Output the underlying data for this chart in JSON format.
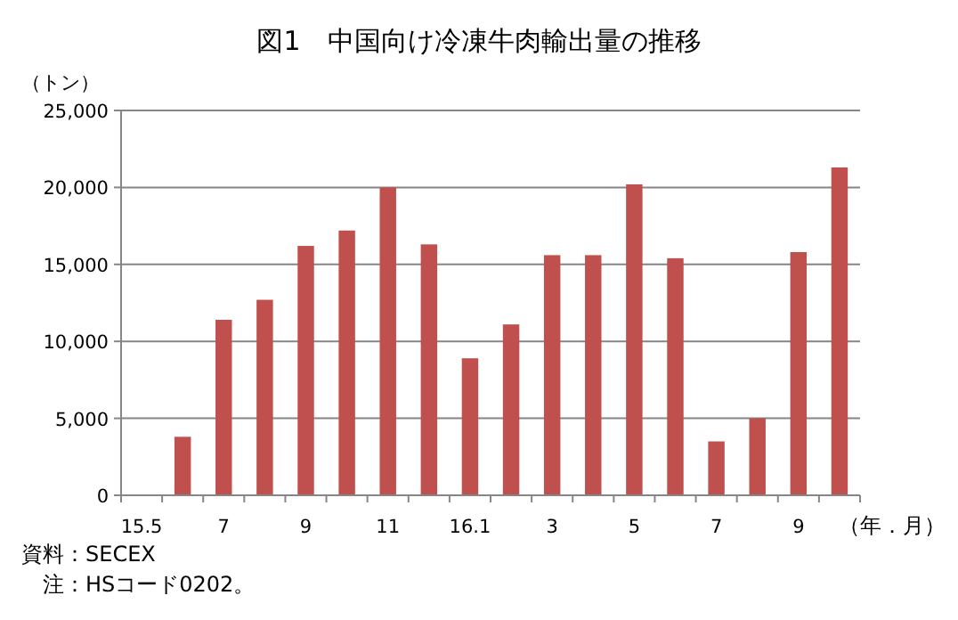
{
  "chart_data": {
    "type": "bar",
    "title": "図1　中国向け冷凍牛肉輸出量の推移",
    "ylabel": "（トン）",
    "xlabel": "（年．月）",
    "categories": [
      "15.5",
      null,
      "7",
      null,
      "9",
      null,
      "11",
      null,
      "16.1",
      null,
      "3",
      null,
      "5",
      null,
      "7",
      null,
      "9",
      null
    ],
    "values": [
      null,
      3800,
      11400,
      12700,
      16200,
      17200,
      20000,
      16300,
      8900,
      11100,
      15600,
      15600,
      20200,
      15400,
      3500,
      5000,
      15800,
      21300
    ],
    "color": "#c0504d",
    "ylim": [
      0,
      25000
    ],
    "yticks": [
      {
        "value": 0,
        "label": "0"
      },
      {
        "value": 5000,
        "label": "5,000"
      },
      {
        "value": 10000,
        "label": "10,000"
      },
      {
        "value": 15000,
        "label": "15,000"
      },
      {
        "value": 20000,
        "label": "20,000"
      },
      {
        "value": 25000,
        "label": "25,000"
      }
    ],
    "grid": "y",
    "annotations": [
      "資料：SECEX",
      "　注：HSコード0202。"
    ]
  }
}
